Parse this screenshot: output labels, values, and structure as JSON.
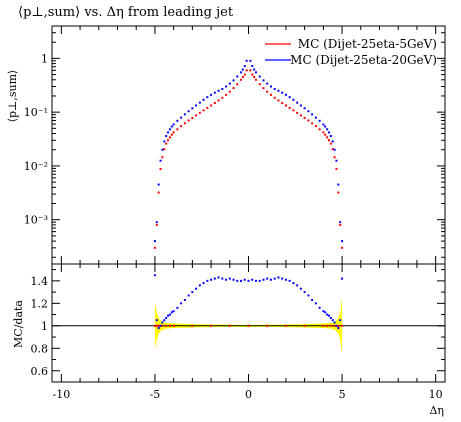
{
  "chart_data": [
    {
      "type": "scatter",
      "title": "⟨p⊥,sum⟩ vs. Δη from leading jet",
      "ylabel": "⟨p⊥,sum⟩",
      "xlabel": "",
      "xlim": [
        -10.5,
        10.5
      ],
      "ylim": [
        0.00015,
        4
      ],
      "yscale": "log",
      "yticks": [
        {
          "value": 0.001,
          "label": "10⁻³"
        },
        {
          "value": 0.01,
          "label": "10⁻²"
        },
        {
          "value": 0.1,
          "label": "10⁻¹"
        },
        {
          "value": 1,
          "label": "1"
        }
      ],
      "legend_position": "top-right",
      "series": [
        {
          "name": "MC (Dijet-25eta-5GeV)",
          "color": "#ff0000",
          "points": [
            [
              -5.0,
              0.0003
            ],
            [
              -4.9,
              0.0008
            ],
            [
              -4.8,
              0.0032
            ],
            [
              -4.7,
              0.0088
            ],
            [
              -4.6,
              0.0145
            ],
            [
              -4.5,
              0.0205
            ],
            [
              -4.4,
              0.026
            ],
            [
              -4.3,
              0.03
            ],
            [
              -4.2,
              0.034
            ],
            [
              -4.1,
              0.038
            ],
            [
              -4.0,
              0.042
            ],
            [
              -3.8,
              0.048
            ],
            [
              -3.6,
              0.055
            ],
            [
              -3.4,
              0.062
            ],
            [
              -3.2,
              0.07
            ],
            [
              -3.0,
              0.078
            ],
            [
              -2.8,
              0.087
            ],
            [
              -2.6,
              0.097
            ],
            [
              -2.4,
              0.108
            ],
            [
              -2.2,
              0.12
            ],
            [
              -2.0,
              0.133
            ],
            [
              -1.8,
              0.148
            ],
            [
              -1.6,
              0.165
            ],
            [
              -1.4,
              0.185
            ],
            [
              -1.2,
              0.21
            ],
            [
              -1.0,
              0.24
            ],
            [
              -0.8,
              0.28
            ],
            [
              -0.6,
              0.33
            ],
            [
              -0.4,
              0.4
            ],
            [
              -0.3,
              0.45
            ],
            [
              -0.2,
              0.5
            ],
            [
              -0.1,
              0.6
            ],
            [
              0.1,
              0.6
            ],
            [
              0.2,
              0.5
            ],
            [
              0.3,
              0.45
            ],
            [
              0.4,
              0.4
            ],
            [
              0.6,
              0.33
            ],
            [
              0.8,
              0.28
            ],
            [
              1.0,
              0.24
            ],
            [
              1.2,
              0.21
            ],
            [
              1.4,
              0.185
            ],
            [
              1.6,
              0.165
            ],
            [
              1.8,
              0.148
            ],
            [
              2.0,
              0.133
            ],
            [
              2.2,
              0.12
            ],
            [
              2.4,
              0.108
            ],
            [
              2.6,
              0.097
            ],
            [
              2.8,
              0.087
            ],
            [
              3.0,
              0.078
            ],
            [
              3.2,
              0.07
            ],
            [
              3.4,
              0.062
            ],
            [
              3.6,
              0.055
            ],
            [
              3.8,
              0.048
            ],
            [
              4.0,
              0.042
            ],
            [
              4.1,
              0.038
            ],
            [
              4.2,
              0.034
            ],
            [
              4.3,
              0.03
            ],
            [
              4.4,
              0.026
            ],
            [
              4.5,
              0.0205
            ],
            [
              4.6,
              0.0145
            ],
            [
              4.7,
              0.0088
            ],
            [
              4.8,
              0.0032
            ],
            [
              4.9,
              0.0008
            ],
            [
              5.0,
              0.0003
            ]
          ]
        },
        {
          "name": "MC (Dijet-25eta-20GeV)",
          "color": "#0000ff",
          "points": [
            [
              -5.0,
              0.0004
            ],
            [
              -4.9,
              0.0009
            ],
            [
              -4.8,
              0.0045
            ],
            [
              -4.7,
              0.0125
            ],
            [
              -4.6,
              0.02
            ],
            [
              -4.5,
              0.0285
            ],
            [
              -4.4,
              0.036
            ],
            [
              -4.3,
              0.042
            ],
            [
              -4.2,
              0.048
            ],
            [
              -4.1,
              0.054
            ],
            [
              -4.0,
              0.059
            ],
            [
              -3.8,
              0.069
            ],
            [
              -3.6,
              0.079
            ],
            [
              -3.4,
              0.091
            ],
            [
              -3.2,
              0.104
            ],
            [
              -3.0,
              0.118
            ],
            [
              -2.8,
              0.133
            ],
            [
              -2.6,
              0.15
            ],
            [
              -2.4,
              0.17
            ],
            [
              -2.2,
              0.19
            ],
            [
              -2.0,
              0.21
            ],
            [
              -1.8,
              0.23
            ],
            [
              -1.6,
              0.25
            ],
            [
              -1.4,
              0.27
            ],
            [
              -1.2,
              0.3
            ],
            [
              -1.0,
              0.34
            ],
            [
              -0.8,
              0.39
            ],
            [
              -0.6,
              0.46
            ],
            [
              -0.4,
              0.55
            ],
            [
              -0.3,
              0.62
            ],
            [
              -0.2,
              0.72
            ],
            [
              -0.1,
              0.9
            ],
            [
              0.1,
              0.9
            ],
            [
              0.2,
              0.72
            ],
            [
              0.3,
              0.62
            ],
            [
              0.4,
              0.55
            ],
            [
              0.6,
              0.46
            ],
            [
              0.8,
              0.39
            ],
            [
              1.0,
              0.34
            ],
            [
              1.2,
              0.3
            ],
            [
              1.4,
              0.27
            ],
            [
              1.6,
              0.25
            ],
            [
              1.8,
              0.23
            ],
            [
              2.0,
              0.21
            ],
            [
              2.2,
              0.19
            ],
            [
              2.4,
              0.17
            ],
            [
              2.6,
              0.15
            ],
            [
              2.8,
              0.133
            ],
            [
              3.0,
              0.118
            ],
            [
              3.2,
              0.104
            ],
            [
              3.4,
              0.091
            ],
            [
              3.6,
              0.079
            ],
            [
              3.8,
              0.069
            ],
            [
              4.0,
              0.059
            ],
            [
              4.1,
              0.054
            ],
            [
              4.2,
              0.048
            ],
            [
              4.3,
              0.042
            ],
            [
              4.4,
              0.036
            ],
            [
              4.5,
              0.0285
            ],
            [
              4.6,
              0.02
            ],
            [
              4.7,
              0.0125
            ],
            [
              4.8,
              0.0045
            ],
            [
              4.9,
              0.0009
            ],
            [
              5.0,
              0.0004
            ]
          ]
        }
      ]
    },
    {
      "type": "scatter",
      "title": "",
      "ylabel": "MC/data",
      "xlabel": "Δη",
      "xlim": [
        -10.5,
        10.5
      ],
      "ylim": [
        0.5,
        1.55
      ],
      "yticks": [
        {
          "value": 0.6,
          "label": "0.6"
        },
        {
          "value": 0.8,
          "label": "0.8"
        },
        {
          "value": 1,
          "label": "1"
        },
        {
          "value": 1.2,
          "label": "1.2"
        },
        {
          "value": 1.4,
          "label": "1.4"
        }
      ],
      "xticks": [
        {
          "value": -10,
          "label": "-10"
        },
        {
          "value": -5,
          "label": "-5"
        },
        {
          "value": 0,
          "label": "0"
        },
        {
          "value": 5,
          "label": "5"
        },
        {
          "value": 10,
          "label": "10"
        }
      ],
      "reference_line": 1,
      "band": {
        "color": "#ffff00",
        "points": [
          [
            -5.0,
            0.2
          ],
          [
            -4.9,
            0.12
          ],
          [
            -4.8,
            0.07
          ],
          [
            -4.7,
            0.05
          ],
          [
            -4.6,
            0.035
          ],
          [
            -4.4,
            0.025
          ],
          [
            -4.0,
            0.02
          ],
          [
            -3.0,
            0.015
          ],
          [
            -2.0,
            0.012
          ],
          [
            -1.0,
            0.01
          ],
          [
            0.0,
            0.01
          ],
          [
            1.0,
            0.01
          ],
          [
            2.0,
            0.012
          ],
          [
            3.0,
            0.015
          ],
          [
            4.0,
            0.02
          ],
          [
            4.4,
            0.025
          ],
          [
            4.6,
            0.035
          ],
          [
            4.7,
            0.05
          ],
          [
            4.8,
            0.07
          ],
          [
            4.9,
            0.12
          ],
          [
            5.0,
            0.25
          ]
        ]
      },
      "series": [
        {
          "name": "MC (Dijet-25eta-5GeV)",
          "color": "#ff0000",
          "points": [
            [
              -5.0,
              1.0
            ],
            [
              -4.9,
              1.0
            ],
            [
              -4.8,
              1.0
            ],
            [
              -4.7,
              1.0
            ],
            [
              -4.6,
              1.0
            ],
            [
              -4.4,
              1.0
            ],
            [
              -4.2,
              1.0
            ],
            [
              -4.0,
              1.0
            ],
            [
              -3.0,
              1.0
            ],
            [
              -2.0,
              1.0
            ],
            [
              -1.0,
              1.0
            ],
            [
              0.0,
              1.0
            ],
            [
              1.0,
              1.0
            ],
            [
              2.0,
              1.0
            ],
            [
              3.0,
              1.0
            ],
            [
              4.0,
              1.0
            ],
            [
              4.2,
              1.0
            ],
            [
              4.4,
              1.0
            ],
            [
              4.6,
              1.0
            ],
            [
              4.8,
              1.0
            ],
            [
              5.0,
              1.0
            ]
          ]
        },
        {
          "name": "MC (Dijet-25eta-20GeV)",
          "color": "#0000ff",
          "points": [
            [
              -5.0,
              1.45
            ],
            [
              -4.9,
              1.05
            ],
            [
              -4.8,
              0.98
            ],
            [
              -4.7,
              1.0
            ],
            [
              -4.6,
              1.03
            ],
            [
              -4.5,
              1.05
            ],
            [
              -4.4,
              1.07
            ],
            [
              -4.3,
              1.09
            ],
            [
              -4.2,
              1.1
            ],
            [
              -4.1,
              1.12
            ],
            [
              -4.0,
              1.13
            ],
            [
              -3.8,
              1.16
            ],
            [
              -3.6,
              1.2
            ],
            [
              -3.4,
              1.23
            ],
            [
              -3.2,
              1.27
            ],
            [
              -3.0,
              1.3
            ],
            [
              -2.8,
              1.33
            ],
            [
              -2.6,
              1.36
            ],
            [
              -2.4,
              1.38
            ],
            [
              -2.2,
              1.4
            ],
            [
              -2.0,
              1.41
            ],
            [
              -1.8,
              1.42
            ],
            [
              -1.6,
              1.43
            ],
            [
              -1.4,
              1.42
            ],
            [
              -1.2,
              1.41
            ],
            [
              -1.0,
              1.42
            ],
            [
              -0.8,
              1.41
            ],
            [
              -0.6,
              1.4
            ],
            [
              -0.4,
              1.4
            ],
            [
              -0.2,
              1.41
            ],
            [
              0.0,
              1.4
            ],
            [
              0.2,
              1.41
            ],
            [
              0.4,
              1.4
            ],
            [
              0.6,
              1.4
            ],
            [
              0.8,
              1.41
            ],
            [
              1.0,
              1.42
            ],
            [
              1.2,
              1.41
            ],
            [
              1.4,
              1.42
            ],
            [
              1.6,
              1.43
            ],
            [
              1.8,
              1.42
            ],
            [
              2.0,
              1.41
            ],
            [
              2.2,
              1.4
            ],
            [
              2.4,
              1.38
            ],
            [
              2.6,
              1.36
            ],
            [
              2.8,
              1.33
            ],
            [
              3.0,
              1.3
            ],
            [
              3.2,
              1.27
            ],
            [
              3.4,
              1.23
            ],
            [
              3.6,
              1.2
            ],
            [
              3.8,
              1.16
            ],
            [
              4.0,
              1.13
            ],
            [
              4.1,
              1.12
            ],
            [
              4.2,
              1.1
            ],
            [
              4.3,
              1.09
            ],
            [
              4.4,
              1.07
            ],
            [
              4.5,
              1.05
            ],
            [
              4.6,
              1.03
            ],
            [
              4.7,
              1.0
            ],
            [
              4.8,
              0.98
            ],
            [
              4.9,
              1.05
            ],
            [
              5.0,
              1.42
            ]
          ]
        }
      ]
    }
  ]
}
